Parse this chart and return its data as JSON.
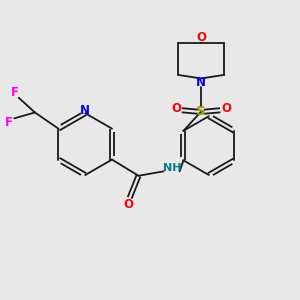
{
  "bg_color": "#e8e8e8",
  "bond_color": "#1a1a1a",
  "atom_colors": {
    "N": "#0000ff",
    "O": "#ff0000",
    "S": "#999900",
    "F": "#ff00ff",
    "NH": "#008080"
  },
  "figsize": [
    3.0,
    3.0
  ],
  "dpi": 100,
  "xlim": [
    0,
    10
  ],
  "ylim": [
    0,
    10
  ]
}
